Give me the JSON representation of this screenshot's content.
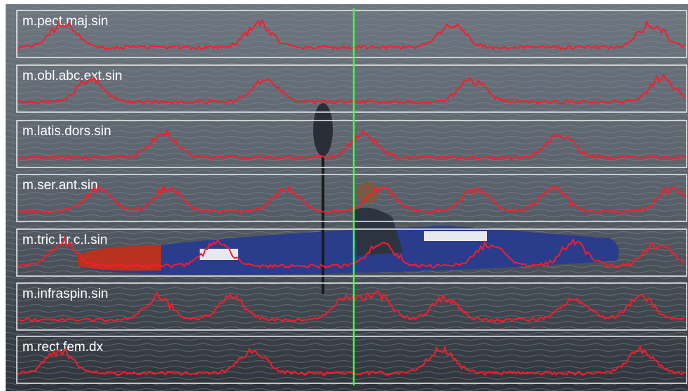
{
  "panels": [
    {
      "label": "m.pect.maj.sin"
    },
    {
      "label": "m.obl.abc.ext.sin"
    },
    {
      "label": "m.latis.dors.sin"
    },
    {
      "label": "m.ser.ant.sin"
    },
    {
      "label": "m.tric.br.c.l.sin"
    },
    {
      "label": "m.infraspin.sin"
    },
    {
      "label": "m.rect.fem.dx"
    }
  ]
}
